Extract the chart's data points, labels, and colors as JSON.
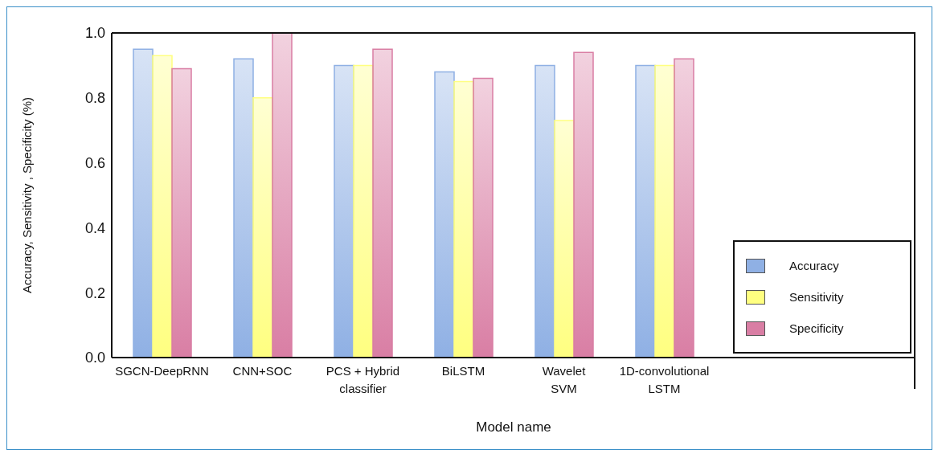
{
  "chart_data": {
    "type": "bar",
    "xlabel": "Model name",
    "ylabel": "Accuracy, Sensitivity , Specificity (%)",
    "categories": [
      "SGCN-DeepRNN",
      "CNN+SOC",
      "PCS + Hybrid\nclassifier",
      "BiLSTM",
      "Wavelet\nSVM",
      "1D-convolutional\nLSTM"
    ],
    "series": [
      {
        "name": "Accuracy",
        "color": "#8fb0e4",
        "values": [
          0.95,
          0.92,
          0.9,
          0.88,
          0.9,
          0.9
        ]
      },
      {
        "name": "Sensitivity",
        "color": "#ffff80",
        "values": [
          0.93,
          0.8,
          0.9,
          0.85,
          0.73,
          0.9
        ]
      },
      {
        "name": "Specificity",
        "color": "#d97ea4",
        "values": [
          0.89,
          1.0,
          0.95,
          0.86,
          0.94,
          0.92
        ]
      }
    ],
    "ylim": [
      0,
      1.0
    ],
    "yticks": [
      {
        "value": 0,
        "label": "0.0"
      },
      {
        "value": 0.2,
        "label": "0.2"
      },
      {
        "value": 0.4,
        "label": "0.4"
      },
      {
        "value": 0.6,
        "label": "0.6"
      },
      {
        "value": 0.8,
        "label": "0.8"
      },
      {
        "value": 1.0,
        "label": "1.0"
      }
    ],
    "legend": "bottom right",
    "grid": false
  }
}
